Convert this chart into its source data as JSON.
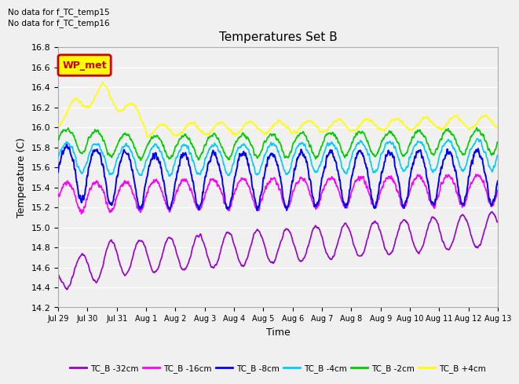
{
  "title": "Temperatures Set B",
  "xlabel": "Time",
  "ylabel": "Temperature (C)",
  "ylim": [
    14.2,
    16.7
  ],
  "note_line1": "No data for f_TC_temp15",
  "note_line2": "No data for f_TC_temp16",
  "legend_label": "WP_met",
  "legend_bg": "#ffff00",
  "legend_border": "#cc0000",
  "xtick_labels": [
    "Jul 29",
    "Jul 30",
    "Jul 31",
    "Aug 1",
    "Aug 2",
    "Aug 3",
    "Aug 4",
    "Aug 5",
    "Aug 6",
    "Aug 7",
    "Aug 8",
    "Aug 9",
    "Aug 10",
    "Aug 11",
    "Aug 12",
    "Aug 13"
  ],
  "series_labels": [
    "TC_B -32cm",
    "TC_B -16cm",
    "TC_B -8cm",
    "TC_B -4cm",
    "TC_B -2cm",
    "TC_B +4cm"
  ],
  "series_colors": [
    "#9900cc",
    "#ff00ff",
    "#0000ff",
    "#00ccff",
    "#00cc00",
    "#ffff00"
  ],
  "plot_bg": "#f0f0f0",
  "grid_color": "#ffffff",
  "n_points": 1500,
  "n_days": 15
}
